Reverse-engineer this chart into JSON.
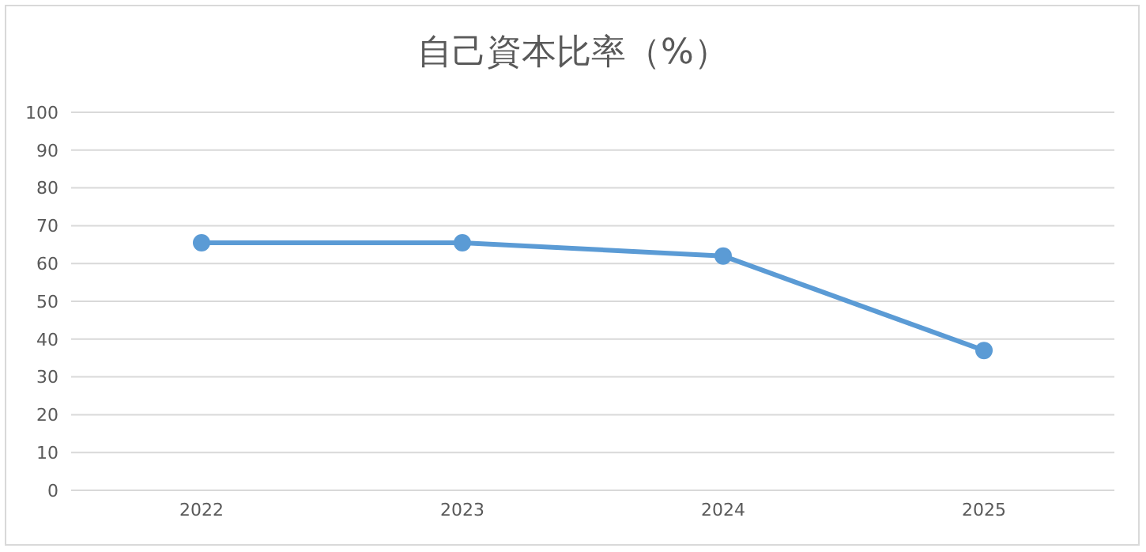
{
  "chart_data": {
    "type": "line",
    "title": "自己資本比率（%）",
    "categories": [
      "2022",
      "2023",
      "2024",
      "2025"
    ],
    "series": [
      {
        "color": "#5b9bd5",
        "values": [
          65.5,
          65.5,
          62,
          37
        ]
      }
    ],
    "ylim": [
      0,
      100
    ],
    "yticks": [
      0,
      10,
      20,
      30,
      40,
      50,
      60,
      70,
      80,
      90,
      100
    ],
    "grid": "y",
    "legend": false,
    "marker": "circle",
    "line_style": "solid"
  }
}
